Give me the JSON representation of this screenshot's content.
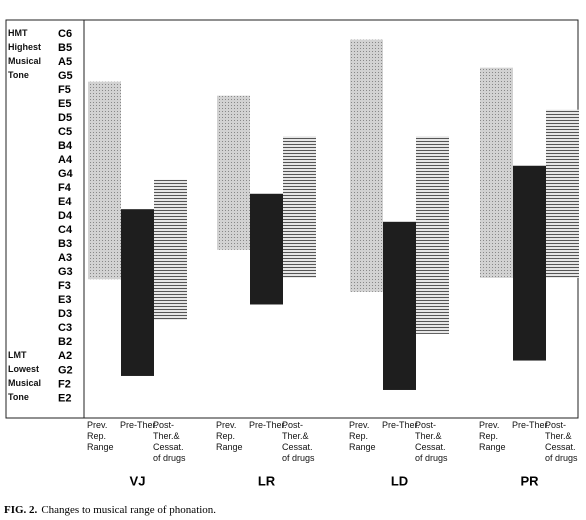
{
  "chart_data": {
    "type": "floating_bar",
    "groups": [
      "VJ",
      "LR",
      "LD",
      "PR"
    ],
    "series": [
      {
        "name": "Prev. Rep. Range",
        "color": "#c4c4c4",
        "pattern": "dots",
        "low": [
          8.5,
          10.6,
          7.6,
          8.6
        ],
        "high": [
          22.6,
          21.6,
          25.6,
          23.6
        ]
      },
      {
        "name": "Pre-Ther.",
        "color": "#1e1e1e",
        "pattern": "solid",
        "low": [
          1.6,
          6.7,
          0.6,
          2.7
        ],
        "high": [
          13.5,
          14.6,
          12.6,
          16.6
        ]
      },
      {
        "name": "Post-Ther.& Cessat. of drugs",
        "color": "#9a9a9a",
        "pattern": "stripes",
        "low": [
          5.6,
          8.6,
          4.6,
          8.6
        ],
        "high": [
          15.6,
          18.7,
          18.7,
          20.6
        ]
      }
    ],
    "ylim": [
      -1.4,
      27
    ],
    "yticks": [
      {
        "value": 0,
        "label": "E2"
      },
      {
        "value": 1,
        "label": "F2"
      },
      {
        "value": 2,
        "label": "G2"
      },
      {
        "value": 3,
        "label": "A2"
      },
      {
        "value": 4,
        "label": "B2"
      },
      {
        "value": 5,
        "label": "C3"
      },
      {
        "value": 6,
        "label": "D3"
      },
      {
        "value": 7,
        "label": "E3"
      },
      {
        "value": 8,
        "label": "F3"
      },
      {
        "value": 9,
        "label": "G3"
      },
      {
        "value": 10,
        "label": "A3"
      },
      {
        "value": 11,
        "label": "B3"
      },
      {
        "value": 12,
        "label": "C4"
      },
      {
        "value": 13,
        "label": "D4"
      },
      {
        "value": 14,
        "label": "E4"
      },
      {
        "value": 15,
        "label": "F4"
      },
      {
        "value": 16,
        "label": "G4"
      },
      {
        "value": 17,
        "label": "A4"
      },
      {
        "value": 18,
        "label": "B4"
      },
      {
        "value": 19,
        "label": "C5"
      },
      {
        "value": 20,
        "label": "D5"
      },
      {
        "value": 21,
        "label": "E5"
      },
      {
        "value": 22,
        "label": "F5"
      },
      {
        "value": 23,
        "label": "G5"
      },
      {
        "value": 24,
        "label": "A5"
      },
      {
        "value": 25,
        "label": "B5"
      },
      {
        "value": 26,
        "label": "C6"
      }
    ],
    "annotations": [
      {
        "text": "HMT Highest Musical Tone",
        "at": 26
      },
      {
        "text": "LMT Lowest Musical Tone",
        "at": 3
      }
    ],
    "caption_label": "FIG. 2.",
    "caption": "Changes to musical range of phonation."
  }
}
